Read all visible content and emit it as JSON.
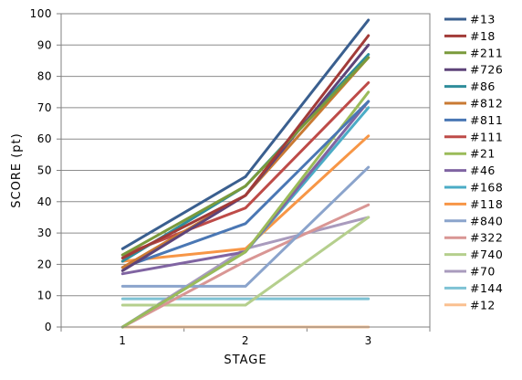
{
  "chart_data": {
    "type": "line",
    "xlabel": "STAGE",
    "ylabel": "SCORE (pt)",
    "categories": [
      "1",
      "2",
      "3"
    ],
    "ylim": [
      0,
      100
    ],
    "yticks": [
      0,
      10,
      20,
      30,
      40,
      50,
      60,
      70,
      80,
      90,
      100
    ],
    "grid": "horizontal",
    "legend_position": "right",
    "series": [
      {
        "name": "#13",
        "color": "#3a5f8f",
        "values": [
          25,
          48,
          98
        ]
      },
      {
        "name": "#18",
        "color": "#a23b38",
        "values": [
          22,
          42,
          93
        ]
      },
      {
        "name": "#211",
        "color": "#7a9a3c",
        "values": [
          23,
          45,
          86
        ]
      },
      {
        "name": "#726",
        "color": "#5e4479",
        "values": [
          18,
          42,
          90
        ]
      },
      {
        "name": "#86",
        "color": "#2f8d9b",
        "values": [
          21,
          45,
          87
        ]
      },
      {
        "name": "#812",
        "color": "#c97a33",
        "values": [
          19,
          42,
          86
        ]
      },
      {
        "name": "#811",
        "color": "#4a77b4",
        "values": [
          19,
          33,
          72
        ]
      },
      {
        "name": "#111",
        "color": "#be4b48",
        "values": [
          23,
          38,
          78
        ]
      },
      {
        "name": "#21",
        "color": "#9bbb59",
        "values": [
          0,
          24,
          75
        ]
      },
      {
        "name": "#46",
        "color": "#8064a2",
        "values": [
          17,
          24,
          72
        ]
      },
      {
        "name": "#168",
        "color": "#4bacc6",
        "values": [
          0,
          24,
          70
        ]
      },
      {
        "name": "#118",
        "color": "#f79646",
        "values": [
          21,
          25,
          61
        ]
      },
      {
        "name": "#840",
        "color": "#8ba4cc",
        "values": [
          13,
          13,
          51
        ]
      },
      {
        "name": "#322",
        "color": "#d99694",
        "values": [
          0,
          21,
          39
        ]
      },
      {
        "name": "#740",
        "color": "#b5cf8d",
        "values": [
          7,
          7,
          35
        ]
      },
      {
        "name": "#70",
        "color": "#a99bbd",
        "values": [
          0,
          25,
          35
        ]
      },
      {
        "name": "#144",
        "color": "#7ec2d4",
        "values": [
          9,
          9,
          9
        ]
      },
      {
        "name": "#12",
        "color": "#fac090",
        "values": [
          0,
          0,
          0
        ]
      }
    ]
  }
}
